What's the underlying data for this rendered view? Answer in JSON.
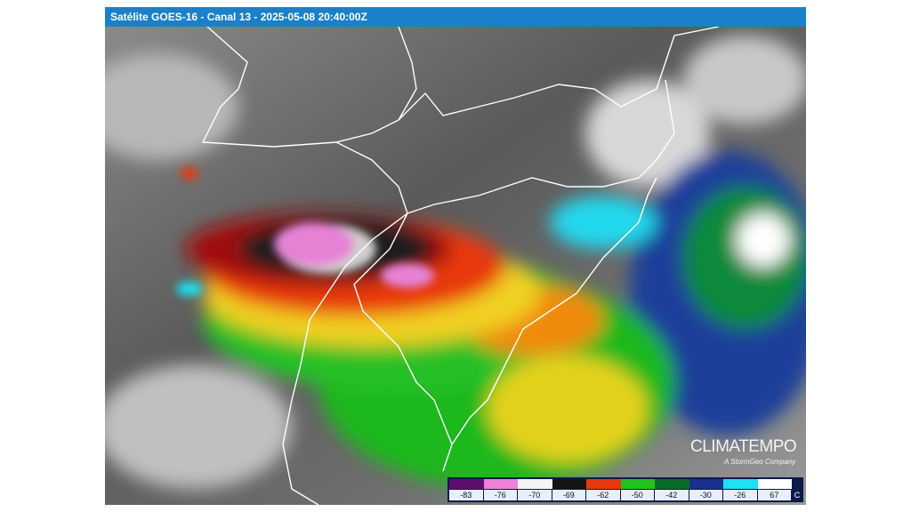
{
  "header": {
    "title": "Satélite GOES-16 - Canal 13 - 2025-05-08 20:40:00Z"
  },
  "logo": {
    "name": "CLIMATEMPO",
    "tagline": "A StormGeo Company"
  },
  "legend": {
    "entries": [
      {
        "label": "-83",
        "color": "#5c0f6e"
      },
      {
        "label": "-76",
        "color": "#ee82d6"
      },
      {
        "label": "-70",
        "color": "#f4f4f4"
      },
      {
        "label": "-69",
        "color": "#141414"
      },
      {
        "label": "-62",
        "color": "#e8380e"
      },
      {
        "label": "-50",
        "color": "#22c21e"
      },
      {
        "label": "-42",
        "color": "#0b6b2b"
      },
      {
        "label": "-30",
        "color": "#1b2f8c"
      },
      {
        "label": "-26",
        "color": "#1ee0f2"
      },
      {
        "label": "67",
        "color": "#ffffff"
      }
    ],
    "unit": "C"
  }
}
